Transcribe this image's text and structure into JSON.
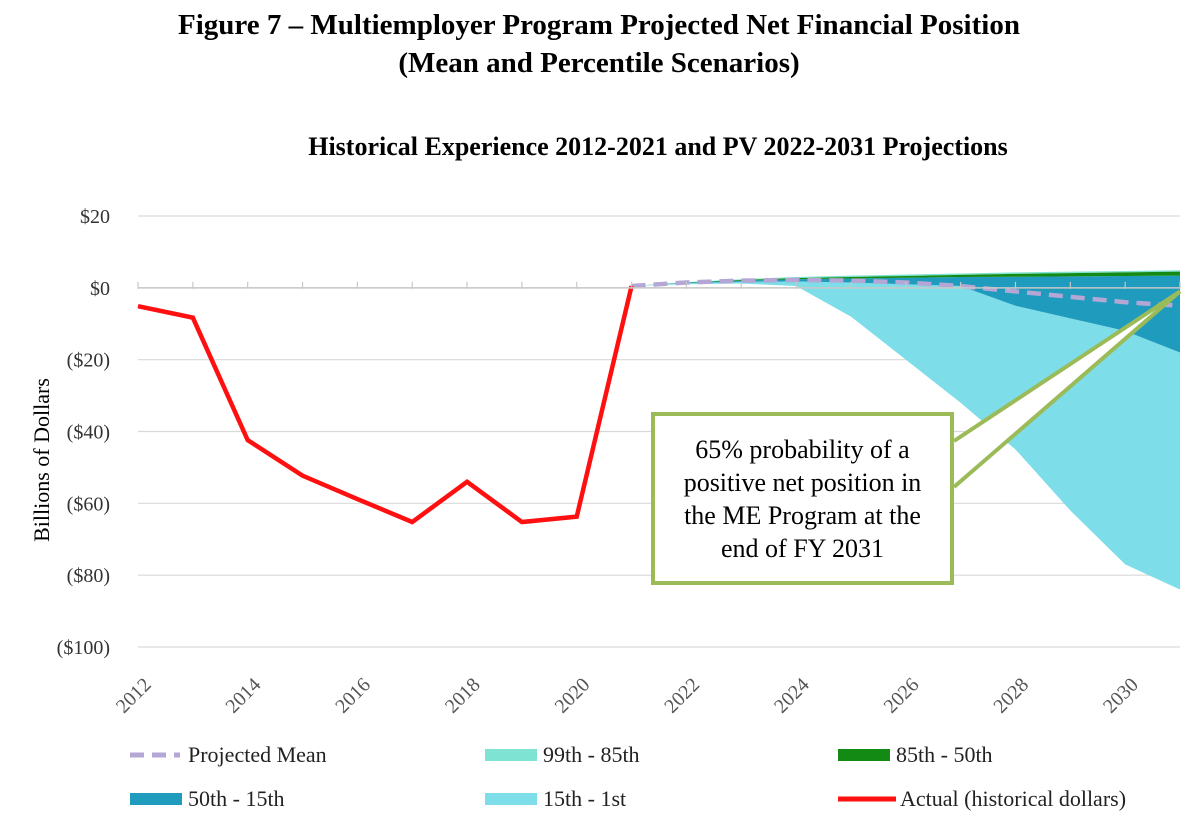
{
  "figure": {
    "title_line1": "Figure 7 – Multiemployer Program Projected Net Financial Position",
    "title_line2": "(Mean and Percentile Scenarios)"
  },
  "chart_data": {
    "type": "area",
    "subtitle": "Historical Experience 2012-2021 and PV 2022-2031 Projections",
    "ylabel": "Billions of Dollars",
    "ylim": [
      -100,
      20
    ],
    "yticks": [
      20,
      0,
      -20,
      -40,
      -60,
      -80,
      -100
    ],
    "ytick_labels": [
      "$20",
      "$0",
      "($20)",
      "($40)",
      "($60)",
      "($80)",
      "($100)"
    ],
    "xlim": [
      2012,
      2031
    ],
    "xticks": [
      2012,
      2014,
      2016,
      2018,
      2020,
      2022,
      2024,
      2026,
      2028,
      2030
    ],
    "xtick_labels": [
      "2012",
      "2014",
      "2016",
      "2018",
      "2020",
      "2022",
      "2024",
      "2026",
      "2028",
      "2030"
    ],
    "grid": true,
    "legend_position": "bottom",
    "projection_x": [
      2021,
      2022,
      2023,
      2024,
      2025,
      2026,
      2027,
      2028,
      2029,
      2030,
      2031
    ],
    "series": [
      {
        "name": "Projected Mean",
        "kind": "line-dashed",
        "color": "#b4a7d6",
        "x": [
          2021,
          2022,
          2023,
          2024,
          2025,
          2026,
          2027,
          2028,
          2029,
          2030,
          2031
        ],
        "values": [
          0.5,
          1.5,
          2.0,
          2.2,
          2.0,
          1.5,
          0.5,
          -1.0,
          -2.5,
          -4.0,
          -5.0
        ]
      },
      {
        "name": "99th - 85th",
        "kind": "band",
        "color": "#7fe3d3",
        "lower": [
          0.5,
          1.5,
          2.2,
          2.7,
          3.0,
          3.3,
          3.6,
          3.9,
          4.1,
          4.3,
          4.5
        ],
        "upper": [
          0.5,
          1.6,
          2.4,
          3.0,
          3.4,
          3.7,
          4.0,
          4.3,
          4.5,
          4.7,
          4.9
        ]
      },
      {
        "name": "85th - 50th",
        "kind": "band",
        "color": "#138a13",
        "lower": [
          0.5,
          1.4,
          2.0,
          2.4,
          2.6,
          2.8,
          3.0,
          3.1,
          3.2,
          3.3,
          3.4
        ],
        "upper": [
          0.5,
          1.5,
          2.2,
          2.7,
          3.0,
          3.3,
          3.6,
          3.9,
          4.1,
          4.3,
          4.5
        ]
      },
      {
        "name": "50th - 15th",
        "kind": "band",
        "color": "#1e9bbd",
        "lower": [
          0.5,
          1.3,
          1.7,
          1.8,
          1.5,
          1.0,
          0.5,
          -5.0,
          -8.5,
          -12.0,
          -18.0
        ],
        "upper": [
          0.5,
          1.4,
          2.0,
          2.4,
          2.6,
          2.8,
          3.0,
          3.1,
          3.2,
          3.3,
          3.4
        ]
      },
      {
        "name": "15th - 1st",
        "kind": "band",
        "color": "#7ddde8",
        "lower": [
          0.5,
          1.0,
          1.2,
          0.5,
          -8.0,
          -20.0,
          -32.0,
          -45.0,
          -62.0,
          -77.0,
          -84.0
        ],
        "upper": [
          0.5,
          1.3,
          1.7,
          1.8,
          1.5,
          1.0,
          0.5,
          -5.0,
          -8.5,
          -12.0,
          -18.0
        ]
      },
      {
        "name": "Actual (historical dollars)",
        "kind": "line",
        "color": "#ff1010",
        "x": [
          2012,
          2013,
          2014,
          2015,
          2016,
          2017,
          2018,
          2019,
          2020,
          2021
        ],
        "values": [
          -5.1,
          -8.3,
          -42.4,
          -52.3,
          -58.8,
          -65.2,
          -54.0,
          -65.2,
          -63.7,
          0.5
        ]
      }
    ],
    "annotation": "65% probability of a positive net position in the ME Program at the end of FY 2031"
  },
  "legend": [
    {
      "label": "Projected Mean",
      "swatch": "dash",
      "color": "#b4a7d6"
    },
    {
      "label": "99th - 85th",
      "swatch": "box",
      "color": "#7fe3d3"
    },
    {
      "label": "85th - 50th",
      "swatch": "box",
      "color": "#138a13"
    },
    {
      "label": "50th - 15th",
      "swatch": "box",
      "color": "#1e9bbd"
    },
    {
      "label": "15th - 1st",
      "swatch": "box",
      "color": "#7ddde8"
    },
    {
      "label": "Actual (historical dollars)",
      "swatch": "line",
      "color": "#ff1010"
    }
  ],
  "colors": {
    "grid": "#d9d9d9",
    "callout_border": "#9bbb59"
  }
}
